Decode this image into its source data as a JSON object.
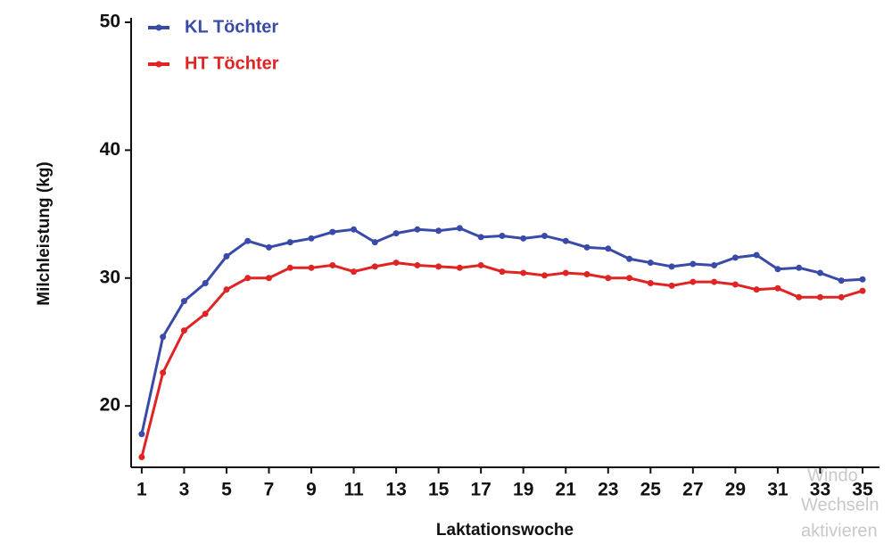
{
  "chart_data": {
    "type": "line",
    "x_label": "Laktationswoche",
    "y_label": "Milchleistung (kg)",
    "x": [
      1,
      2,
      3,
      4,
      5,
      6,
      7,
      8,
      9,
      10,
      11,
      12,
      13,
      14,
      15,
      16,
      17,
      18,
      19,
      20,
      21,
      22,
      23,
      24,
      25,
      26,
      27,
      28,
      29,
      30,
      31,
      32,
      33,
      34,
      35
    ],
    "series": [
      {
        "name": "KL Töchter",
        "color": "#3a4aa8",
        "values": [
          17.8,
          25.4,
          28.2,
          29.6,
          31.7,
          32.9,
          32.4,
          32.8,
          33.1,
          33.6,
          33.8,
          32.8,
          33.5,
          33.8,
          33.7,
          33.9,
          33.2,
          33.3,
          33.1,
          33.3,
          32.9,
          32.4,
          32.3,
          31.5,
          31.2,
          30.9,
          31.1,
          31.0,
          31.6,
          31.8,
          30.7,
          30.8,
          30.4,
          29.8,
          29.9
        ]
      },
      {
        "name": "HT Töchter",
        "color": "#e02424",
        "values": [
          16.0,
          22.6,
          25.9,
          27.2,
          29.1,
          30.0,
          30.0,
          30.8,
          30.8,
          31.0,
          30.5,
          30.9,
          31.2,
          31.0,
          30.9,
          30.8,
          31.0,
          30.5,
          30.4,
          30.2,
          30.4,
          30.3,
          30.0,
          30.0,
          29.6,
          29.4,
          29.7,
          29.7,
          29.5,
          29.1,
          29.2,
          28.5,
          28.5,
          28.5,
          29.0
        ]
      }
    ],
    "xlim": [
      0.5,
      35.8
    ],
    "ylim": [
      15.2,
      50
    ],
    "xticks": [
      1,
      3,
      5,
      7,
      9,
      11,
      13,
      15,
      17,
      19,
      21,
      23,
      25,
      27,
      29,
      31,
      33,
      35
    ],
    "yticks": [
      20,
      30,
      40,
      50
    ],
    "legend": "top-left",
    "grid": false
  },
  "watermark": [
    "Windo",
    "Wechseln",
    "aktivieren"
  ]
}
